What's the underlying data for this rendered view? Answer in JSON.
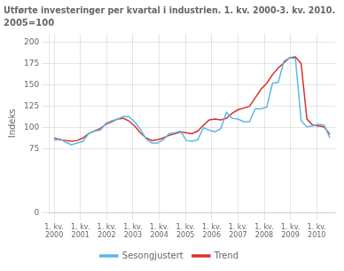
{
  "chart_data": {
    "type": "line",
    "title": "Utførte investeringer per kvartal i industrien. 1. kv. 2000-3. kv. 2010.",
    "subtitle": "2005=100",
    "ylabel": "Indeks",
    "x": [
      0,
      0.21875,
      0.4375,
      0.65625,
      0.875,
      1.09375,
      1.3125,
      1.53125,
      1.75,
      1.96875,
      2.1875,
      2.40625,
      2.625,
      2.84375,
      3.0625,
      3.28125,
      3.5,
      3.71875,
      3.9375,
      4.15625,
      4.375,
      4.59375,
      4.8125,
      5.03125,
      5.25,
      5.46875,
      5.6875,
      5.90625,
      6.125,
      6.34375,
      6.5625,
      6.78125,
      7,
      7.21875,
      7.4375,
      7.65625,
      7.875,
      8.09375,
      8.3125,
      8.53125,
      8.75,
      8.96875,
      9.1875,
      9.40625,
      9.625,
      9.84375,
      10.0625,
      10.28125,
      10.5
    ],
    "series": [
      {
        "name": "Sesongjustert",
        "color": "#5bb8e8",
        "values": [
          85,
          87,
          83,
          80,
          82,
          84,
          93,
          96,
          97,
          105,
          108,
          110,
          113,
          113,
          107,
          98,
          87,
          82,
          82,
          86,
          93,
          94,
          96,
          85,
          84,
          86,
          100,
          97,
          95,
          99,
          118,
          111,
          110,
          107,
          107,
          122,
          122,
          124,
          152,
          153,
          178,
          182,
          181,
          108,
          101,
          102,
          104,
          103,
          88
        ]
      },
      {
        "name": "Trend",
        "color": "#d9302a",
        "values": [
          88,
          86,
          85,
          84,
          85,
          88,
          93,
          96,
          99,
          104,
          107,
          110,
          111,
          108,
          102,
          94,
          88,
          85,
          86,
          88,
          91,
          93,
          95,
          94,
          93,
          96,
          103,
          109,
          110,
          109,
          111,
          117,
          121,
          123,
          125,
          135,
          145,
          152,
          162,
          170,
          176,
          182,
          183,
          175,
          110,
          103,
          102,
          101,
          92
        ]
      }
    ],
    "xlim": [
      -0.2,
      10.7
    ],
    "xticks": [
      {
        "value": 0,
        "label": "1. kv.\n2000"
      },
      {
        "value": 1,
        "label": "1. kv.\n2001"
      },
      {
        "value": 2,
        "label": "1. kv.\n2002"
      },
      {
        "value": 3,
        "label": "1. kv.\n2003"
      },
      {
        "value": 4,
        "label": "1. kv.\n2004"
      },
      {
        "value": 5,
        "label": "1. kv.\n2005"
      },
      {
        "value": 6,
        "label": "1. kv.\n2006"
      },
      {
        "value": 7,
        "label": "1. kv.\n2007"
      },
      {
        "value": 8,
        "label": "1. kv.\n2008"
      },
      {
        "value": 9,
        "label": "1. kv.\n2009"
      },
      {
        "value": 10,
        "label": "1. kv.\n2010"
      }
    ],
    "ylim": [
      0,
      210
    ],
    "yticks": [
      0,
      75,
      100,
      125,
      150,
      175,
      200
    ],
    "grid": true,
    "legend": "bottom"
  }
}
